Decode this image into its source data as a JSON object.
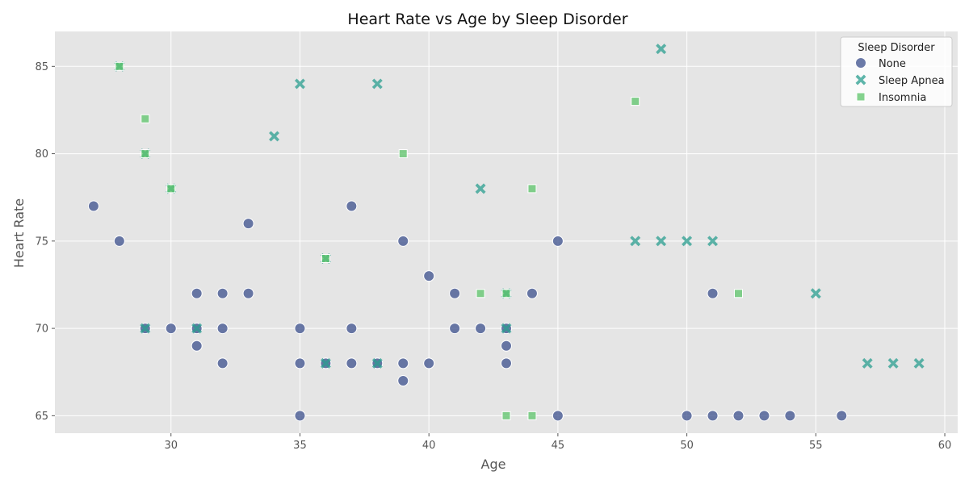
{
  "chart_data": {
    "type": "scatter",
    "title": "Heart Rate vs Age by Sleep Disorder",
    "xlabel": "Age",
    "ylabel": "Heart Rate",
    "xlim": [
      25.5,
      60.5
    ],
    "ylim": [
      64,
      87
    ],
    "xticks": [
      30,
      35,
      40,
      45,
      50,
      55,
      60
    ],
    "yticks": [
      65,
      70,
      75,
      80,
      85
    ],
    "grid": true,
    "legend": {
      "title": "Sleep Disorder",
      "placement": "top-right"
    },
    "series": [
      {
        "name": "None",
        "marker": "circle",
        "color": "#3b4f8c",
        "points": [
          [
            27,
            77
          ],
          [
            28,
            75
          ],
          [
            29,
            70
          ],
          [
            30,
            70
          ],
          [
            31,
            72
          ],
          [
            31,
            70
          ],
          [
            31,
            69
          ],
          [
            32,
            72
          ],
          [
            32,
            70
          ],
          [
            32,
            68
          ],
          [
            33,
            76
          ],
          [
            33,
            72
          ],
          [
            35,
            70
          ],
          [
            35,
            68
          ],
          [
            35,
            65
          ],
          [
            36,
            68
          ],
          [
            37,
            77
          ],
          [
            37,
            70
          ],
          [
            37,
            68
          ],
          [
            38,
            68
          ],
          [
            39,
            75
          ],
          [
            39,
            68
          ],
          [
            39,
            67
          ],
          [
            40,
            73
          ],
          [
            40,
            68
          ],
          [
            41,
            72
          ],
          [
            41,
            70
          ],
          [
            42,
            70
          ],
          [
            43,
            70
          ],
          [
            43,
            69
          ],
          [
            43,
            68
          ],
          [
            44,
            72
          ],
          [
            45,
            75
          ],
          [
            45,
            65
          ],
          [
            50,
            65
          ],
          [
            51,
            72
          ],
          [
            51,
            65
          ],
          [
            52,
            65
          ],
          [
            53,
            65
          ],
          [
            54,
            65
          ],
          [
            56,
            65
          ]
        ]
      },
      {
        "name": "Sleep Apnea",
        "marker": "x",
        "color": "#2a9d8f",
        "points": [
          [
            28,
            85
          ],
          [
            29,
            80
          ],
          [
            29,
            70
          ],
          [
            30,
            78
          ],
          [
            31,
            70
          ],
          [
            34,
            81
          ],
          [
            35,
            84
          ],
          [
            36,
            74
          ],
          [
            36,
            68
          ],
          [
            38,
            84
          ],
          [
            38,
            68
          ],
          [
            42,
            78
          ],
          [
            43,
            72
          ],
          [
            43,
            70
          ],
          [
            48,
            75
          ],
          [
            49,
            86
          ],
          [
            49,
            75
          ],
          [
            50,
            75
          ],
          [
            51,
            75
          ],
          [
            55,
            72
          ],
          [
            57,
            68
          ],
          [
            58,
            68
          ],
          [
            59,
            68
          ]
        ]
      },
      {
        "name": "Insomnia",
        "marker": "square",
        "color": "#5cc46a",
        "points": [
          [
            28,
            85
          ],
          [
            29,
            82
          ],
          [
            29,
            80
          ],
          [
            30,
            78
          ],
          [
            36,
            74
          ],
          [
            39,
            80
          ],
          [
            42,
            72
          ],
          [
            43,
            72
          ],
          [
            43,
            65
          ],
          [
            44,
            78
          ],
          [
            44,
            65
          ],
          [
            48,
            83
          ],
          [
            52,
            72
          ]
        ]
      }
    ]
  }
}
